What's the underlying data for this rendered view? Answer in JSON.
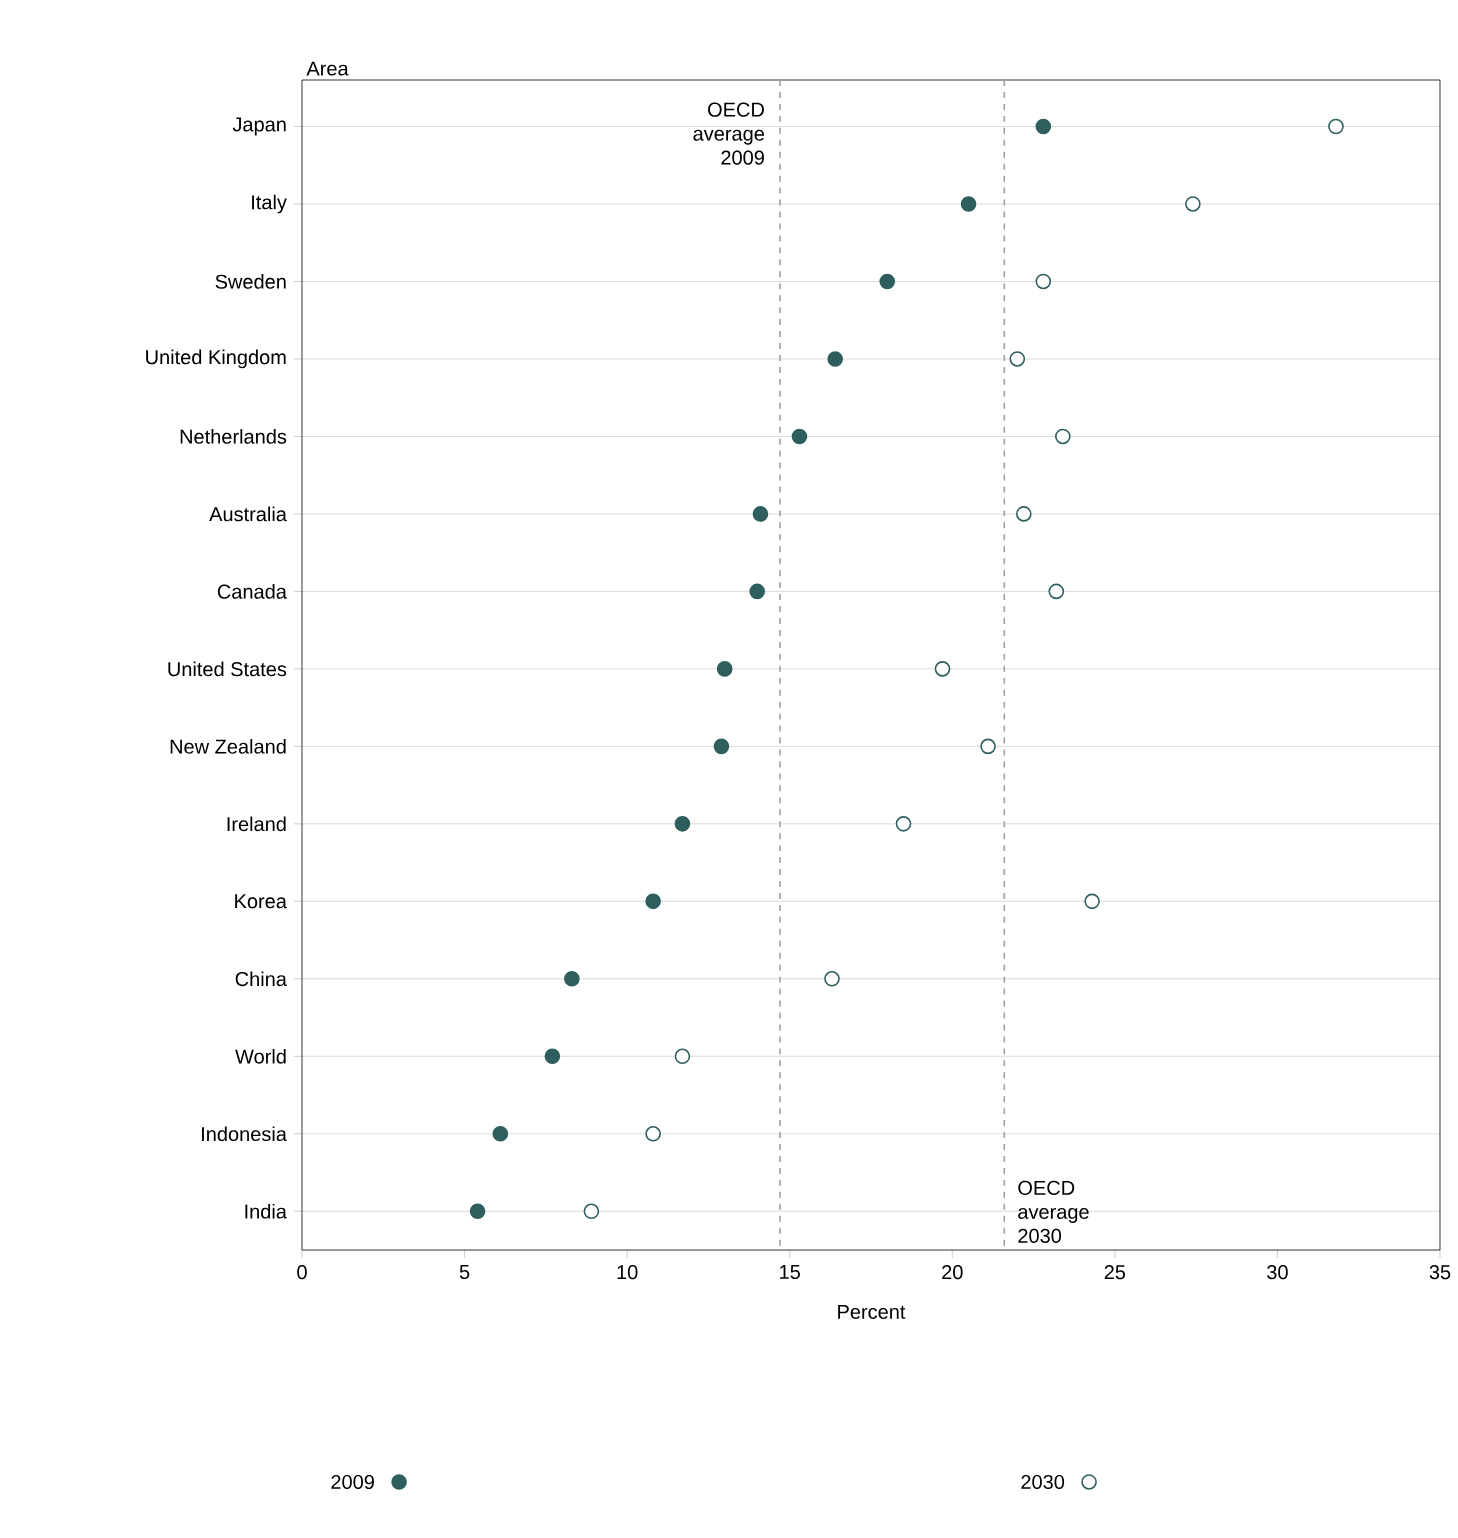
{
  "chart_data": {
    "type": "scatter",
    "orientation": "horizontal",
    "ylabel": "Area",
    "xlabel": "Percent",
    "categories": [
      "Japan",
      "Italy",
      "Sweden",
      "United Kingdom",
      "Netherlands",
      "Australia",
      "Canada",
      "United States",
      "New Zealand",
      "Ireland",
      "Korea",
      "China",
      "World",
      "Indonesia",
      "India"
    ],
    "series": [
      {
        "name": "2009",
        "color": "#2e5e5e",
        "values": [
          22.8,
          20.5,
          18.0,
          16.4,
          15.3,
          14.1,
          14.0,
          13.0,
          12.9,
          11.7,
          10.8,
          8.3,
          7.7,
          6.1,
          5.4
        ]
      },
      {
        "name": "2030",
        "color": "#2e5e5e",
        "values": [
          31.8,
          27.4,
          22.8,
          22.0,
          23.4,
          22.2,
          23.2,
          19.7,
          21.1,
          18.5,
          24.3,
          16.3,
          11.7,
          10.8,
          8.9
        ]
      }
    ],
    "xlim": [
      0,
      35
    ],
    "xticks": [
      0,
      5,
      10,
      15,
      20,
      25,
      30,
      35
    ],
    "ref_lines": [
      {
        "axis": "x",
        "value": 14.7,
        "label": "OECD average 2009",
        "color": "#a0a0a0",
        "line_style": "dashed"
      },
      {
        "axis": "x",
        "value": 21.6,
        "label": "OECD average 2030",
        "color": "#a0a0a0",
        "line_style": "dashed"
      }
    ],
    "grid": "y",
    "legend": "bottom",
    "marker": "circle"
  }
}
